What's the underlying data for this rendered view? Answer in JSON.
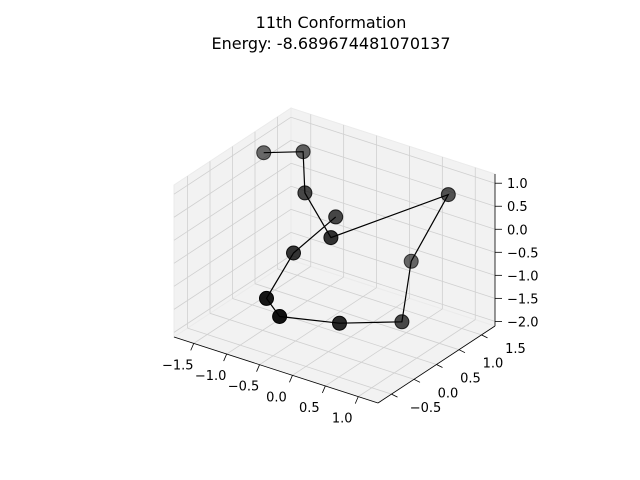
{
  "chart_data": {
    "type": "scatter",
    "subtype": "3d-line-scatter",
    "title_line1": "11th Conformation",
    "title_line2": "Energy: -8.689674481070137",
    "colors": {
      "marker": "#000000",
      "bond": "#000000",
      "pane": "#f2f2f2",
      "grid": "#d0d0d0"
    },
    "axes": {
      "x": {
        "ticks": [
          "−1.5",
          "−1.0",
          "−0.5",
          "0.0",
          "0.5",
          "1.0"
        ]
      },
      "y": {
        "ticks": [
          "−0.5",
          "0.0",
          "0.5",
          "1.0",
          "1.5"
        ]
      },
      "z": {
        "ticks": [
          "−2.0",
          "−1.5",
          "−1.0",
          "−0.5",
          "0.0",
          "0.5",
          "1.0"
        ]
      }
    },
    "series": [
      {
        "points": [
          {
            "x": -1.6,
            "y": 0.9,
            "z": 0.9
          },
          {
            "x": -1.0,
            "y": 0.9,
            "z": 1.2
          },
          {
            "x": -0.7,
            "y": 0.5,
            "z": 0.7
          },
          {
            "x": -0.1,
            "y": 0.2,
            "z": 0.2
          },
          {
            "x": 1.0,
            "y": 1.2,
            "z": 1.0
          },
          {
            "x": 0.3,
            "y": 1.4,
            "z": -0.9
          },
          {
            "x": 0.5,
            "y": 0.9,
            "z": -1.8
          },
          {
            "x": 0.1,
            "y": 0.1,
            "z": -1.5
          },
          {
            "x": -0.4,
            "y": -0.5,
            "z": -1.2
          },
          {
            "x": -0.6,
            "y": -0.5,
            "z": -0.9
          },
          {
            "x": -0.6,
            "y": 0.1,
            "z": -0.3
          },
          {
            "x": -0.3,
            "y": 0.6,
            "z": 0.3
          }
        ]
      }
    ]
  }
}
